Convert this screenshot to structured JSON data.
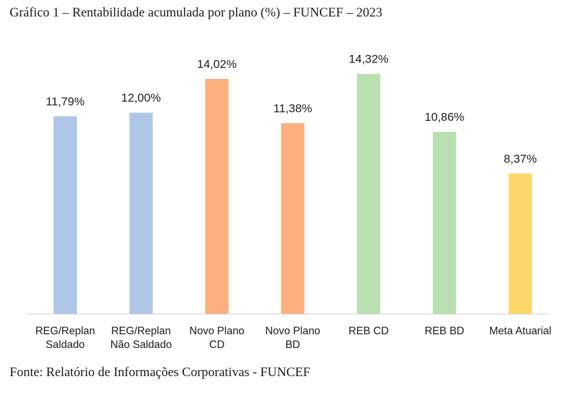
{
  "header": {
    "title": "Gráfico 1 – Rentabilidade acumulada por plano (%) – FUNCEF – 2023"
  },
  "footer": {
    "source": "Fonte: Relatório de Informações Corporativas - FUNCEF"
  },
  "chart_data": {
    "type": "bar",
    "title": "Gráfico 1 – Rentabilidade acumulada por plano (%) – FUNCEF – 2023",
    "xlabel": "",
    "ylabel": "",
    "ylim": [
      0,
      15
    ],
    "grid": false,
    "legend": "none",
    "categories": [
      [
        "REG/Replan",
        "Saldado"
      ],
      [
        "REG/Replan",
        "Não Saldado"
      ],
      [
        "Novo Plano",
        "CD"
      ],
      [
        "Novo Plano",
        "BD"
      ],
      [
        "REB CD"
      ],
      [
        "REB BD"
      ],
      [
        "Meta Atuarial"
      ]
    ],
    "values": [
      11.79,
      12.0,
      14.02,
      11.38,
      14.32,
      10.86,
      8.37
    ],
    "data_labels": [
      "11,79%",
      "12,00%",
      "14,02%",
      "11,38%",
      "14,32%",
      "10,86%",
      "8,37%"
    ],
    "colors": [
      "#aec7e8",
      "#aec7e8",
      "#fbb07e",
      "#fbb07e",
      "#b9e0b0",
      "#b9e0b0",
      "#fdd76a"
    ]
  }
}
